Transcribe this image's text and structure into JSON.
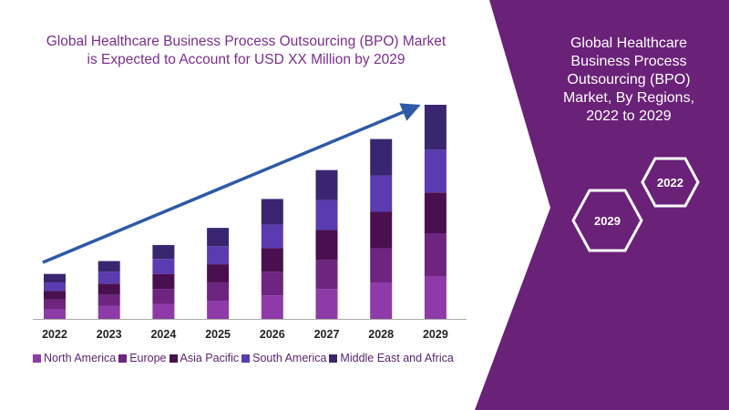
{
  "panel": {
    "title_lines": [
      "Global Healthcare",
      "Business Process",
      "Outsourcing (BPO)",
      "Market, By Regions,",
      "2022 to 2029"
    ],
    "hex_labels": {
      "start": "2022",
      "end": "2029"
    }
  },
  "colors": {
    "panel_bg": "#6a2178",
    "title_text": "#7b2d8e",
    "arrow": "#2e5aa7",
    "axis": "#aaaaaa",
    "series": [
      "#8e3aa8",
      "#6d2580",
      "#4a0f4f",
      "#5b3bb0",
      "#3a2670"
    ]
  },
  "chart_data": {
    "type": "bar",
    "stacked": true,
    "title_lines": [
      "Global Healthcare Business Process Outsourcing (BPO) Market",
      "is Expected to Account for USD XX Million by 2029"
    ],
    "xlabel": "",
    "ylabel": "",
    "ylim": [
      0,
      100
    ],
    "grid": false,
    "y_axis_visible": false,
    "legend_position": "bottom",
    "trend_arrow": true,
    "categories": [
      "2022",
      "2023",
      "2024",
      "2025",
      "2026",
      "2027",
      "2028",
      "2029"
    ],
    "series": [
      {
        "name": "North America",
        "values": [
          4.5,
          6,
          7,
          8.5,
          11,
          14,
          17,
          20
        ]
      },
      {
        "name": "Europe",
        "values": [
          4.5,
          5.5,
          7,
          8.5,
          11,
          13.5,
          16,
          20
        ]
      },
      {
        "name": "Asia Pacific",
        "values": [
          4,
          5,
          7,
          8.5,
          11,
          14,
          17,
          19
        ]
      },
      {
        "name": "South America",
        "values": [
          4,
          5.5,
          7,
          8.5,
          11,
          14,
          17,
          20
        ]
      },
      {
        "name": "Middle East and Africa",
        "values": [
          4,
          5,
          6.5,
          8.5,
          12,
          14,
          17,
          21
        ]
      }
    ]
  }
}
